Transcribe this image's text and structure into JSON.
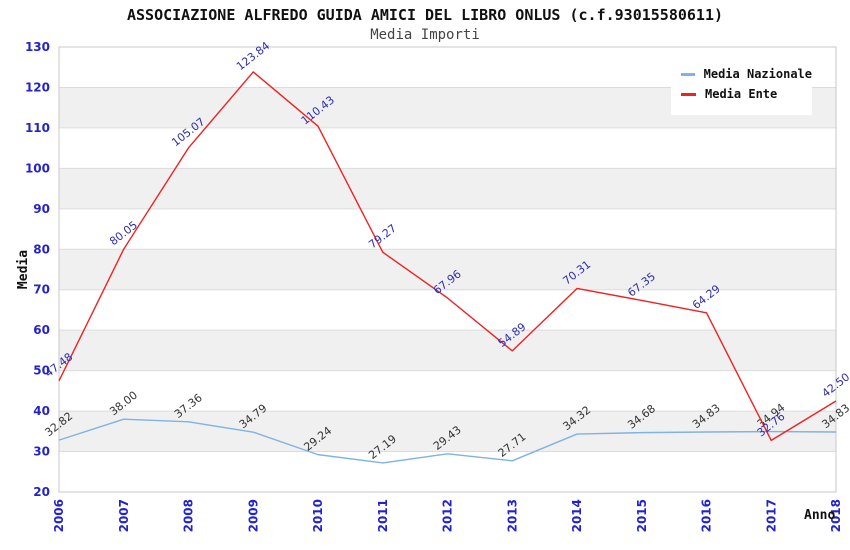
{
  "chart_data": {
    "type": "line",
    "title": "ASSOCIAZIONE ALFREDO GUIDA AMICI DEL LIBRO ONLUS (c.f.93015580611)",
    "subtitle": "Media Importi",
    "xlabel": "Anno",
    "ylabel": "Media",
    "categories": [
      "2006",
      "2007",
      "2008",
      "2009",
      "2010",
      "2011",
      "2012",
      "2013",
      "2014",
      "2015",
      "2016",
      "2017",
      "2018"
    ],
    "series": [
      {
        "name": "Media Nazionale",
        "color": "#7FB2E5",
        "label_color": "#333333",
        "values": [
          32.82,
          38.0,
          37.36,
          34.79,
          29.24,
          27.19,
          29.43,
          27.71,
          34.32,
          34.68,
          34.83,
          34.94,
          34.83
        ]
      },
      {
        "name": "Media Ente",
        "color": "#EE2222",
        "label_color": "#2E2EB0",
        "values": [
          47.48,
          80.05,
          105.07,
          123.84,
          110.43,
          79.27,
          67.96,
          54.89,
          70.31,
          67.35,
          64.29,
          32.76,
          42.5
        ]
      }
    ],
    "ylim": [
      20,
      130
    ],
    "ytick_step": 10,
    "grid": true,
    "band_color": "#F0F0F0",
    "grid_color": "#DCDCDC",
    "border_color": "#C9C9C9",
    "tick_color": "#2323CE",
    "legend_position": "top-right"
  }
}
